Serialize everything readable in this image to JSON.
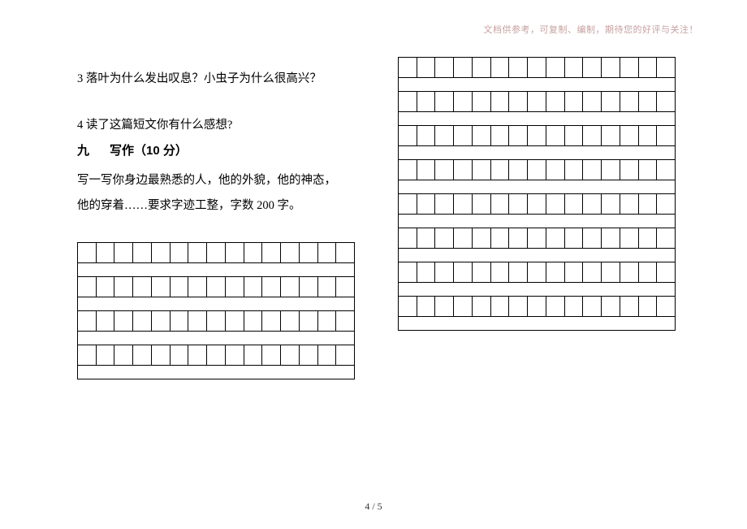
{
  "header_note": "文档供参考，可复制、编制，期待您的好评与关注！",
  "questions": {
    "q3": "3 落叶为什么发出叹息？小虫子为什么很高兴？",
    "q4": "4 读了这篇短文你有什么感想?",
    "section_num": "九",
    "section_title": "写作（10 分）",
    "prompt_line1": "写一写你身边最熟悉的人，他的外貌，他的神态，",
    "prompt_line2": "他的穿着……要求字迹工整，字数 200 字。"
  },
  "page_number": "4 / 5",
  "writing_grid": {
    "columns": 15,
    "left_groups": 4,
    "right_groups": 8,
    "cell_border_color": "#000000",
    "background_color": "#ffffff"
  }
}
